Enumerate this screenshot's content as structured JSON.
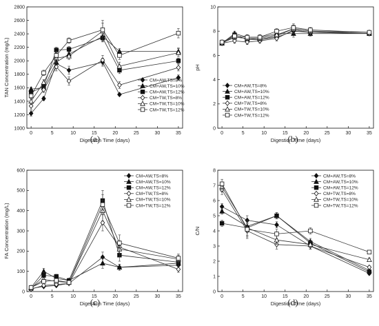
{
  "chart_data": [
    {
      "panel": "a",
      "type": "line",
      "panel_label": "(a)",
      "xlabel": "Digestion Time (days)",
      "ylabel": "TAN Concentration (mg/L)",
      "xlim": [
        -1,
        36
      ],
      "ylim": [
        1000,
        2800
      ],
      "xticks": [
        0,
        5,
        10,
        15,
        20,
        25,
        30,
        35
      ],
      "yticks": [
        1000,
        1200,
        1400,
        1600,
        1800,
        2000,
        2200,
        2400,
        2600,
        2800
      ],
      "x": [
        0,
        3,
        6,
        9,
        17,
        21,
        35
      ],
      "legend_position": "right",
      "series": [
        {
          "name": "CM+AW,TS=8%",
          "marker": "diamond",
          "fill": true,
          "values": [
            1220,
            1440,
            1960,
            1860,
            1980,
            1500,
            1750
          ],
          "err": [
            40,
            30,
            50,
            60,
            60,
            20,
            40
          ]
        },
        {
          "name": "CM+AW,TS=10%",
          "marker": "triangle",
          "fill": true,
          "values": [
            1580,
            1600,
            1980,
            2100,
            2360,
            2140,
            2140
          ],
          "err": [
            30,
            40,
            50,
            40,
            60,
            40,
            50
          ]
        },
        {
          "name": "CM+AW,TS=12%",
          "marker": "square",
          "fill": true,
          "values": [
            1530,
            1620,
            2160,
            2170,
            2340,
            1860,
            2000
          ],
          "err": [
            30,
            30,
            40,
            40,
            50,
            50,
            40
          ]
        },
        {
          "name": "CM+TW,TS=8%",
          "marker": "diamond",
          "fill": false,
          "values": [
            1330,
            1570,
            1910,
            1700,
            2010,
            1640,
            1900
          ],
          "err": [
            50,
            40,
            60,
            60,
            70,
            50,
            50
          ]
        },
        {
          "name": "CM+TW,TS=10%",
          "marker": "triangle",
          "fill": false,
          "values": [
            1400,
            1680,
            2040,
            2070,
            2440,
            1920,
            2120
          ],
          "err": [
            50,
            40,
            60,
            50,
            160,
            60,
            60
          ]
        },
        {
          "name": "CM+TW,TS=12%",
          "marker": "square",
          "fill": false,
          "values": [
            1480,
            1820,
            2080,
            2300,
            2460,
            2080,
            2410
          ],
          "err": [
            40,
            40,
            60,
            40,
            100,
            60,
            70
          ]
        }
      ]
    },
    {
      "panel": "b",
      "type": "line",
      "panel_label": "(b)",
      "xlabel": "Digestion Time (days)",
      "ylabel": "pH",
      "xlim": [
        -1,
        36
      ],
      "ylim": [
        0,
        10
      ],
      "xticks": [
        0,
        5,
        10,
        15,
        20,
        25,
        30,
        35
      ],
      "yticks": [
        0,
        2,
        4,
        6,
        8,
        10
      ],
      "x": [
        0,
        3,
        6,
        9,
        13,
        17,
        21,
        35
      ],
      "legend_position": "lower-left",
      "series": [
        {
          "name": "CM+AW,TS=8%",
          "marker": "diamond",
          "fill": true,
          "values": [
            7.0,
            7.5,
            7.4,
            7.3,
            7.5,
            8.0,
            7.9,
            7.8
          ],
          "err": [
            0.1,
            0.2,
            0.2,
            0.2,
            0.2,
            0.3,
            0.2,
            0.1
          ]
        },
        {
          "name": "CM+AW,TS=10%",
          "marker": "triangle",
          "fill": true,
          "values": [
            7.0,
            7.8,
            7.5,
            7.5,
            7.8,
            7.8,
            7.8,
            7.8
          ],
          "err": [
            0.1,
            0.2,
            0.2,
            0.2,
            0.2,
            0.3,
            0.2,
            0.1
          ]
        },
        {
          "name": "CM+AW,TS=12%",
          "marker": "square",
          "fill": true,
          "values": [
            7.0,
            7.7,
            7.3,
            7.3,
            7.6,
            8.2,
            8.0,
            7.8
          ],
          "err": [
            0.1,
            0.2,
            0.2,
            0.2,
            0.2,
            0.3,
            0.2,
            0.1
          ]
        },
        {
          "name": "CM+TW,TS=8%",
          "marker": "diamond",
          "fill": false,
          "values": [
            7.0,
            7.2,
            7.1,
            7.2,
            7.4,
            8.1,
            7.9,
            7.8
          ],
          "err": [
            0.1,
            0.2,
            0.2,
            0.2,
            0.2,
            0.3,
            0.2,
            0.1
          ]
        },
        {
          "name": "CM+TW,TS=10%",
          "marker": "triangle",
          "fill": false,
          "values": [
            7.1,
            7.5,
            7.4,
            7.4,
            7.7,
            8.2,
            8.0,
            7.9
          ],
          "err": [
            0.1,
            0.2,
            0.2,
            0.2,
            0.2,
            0.3,
            0.2,
            0.1
          ]
        },
        {
          "name": "CM+TW,TS=12%",
          "marker": "square",
          "fill": false,
          "values": [
            7.1,
            7.6,
            7.5,
            7.5,
            8.0,
            8.3,
            8.1,
            7.9
          ],
          "err": [
            0.1,
            0.2,
            0.2,
            0.2,
            0.2,
            0.3,
            0.2,
            0.1
          ]
        }
      ]
    },
    {
      "panel": "c",
      "type": "line",
      "panel_label": "(c)",
      "xlabel": "Digestion Time (days)",
      "ylabel": "FA Concentration (mg/L)",
      "xlim": [
        -1,
        36
      ],
      "ylim": [
        0,
        600
      ],
      "xticks": [
        0,
        5,
        10,
        15,
        20,
        25,
        30,
        35
      ],
      "yticks": [
        0,
        100,
        200,
        300,
        400,
        500,
        600
      ],
      "x": [
        0,
        3,
        6,
        9,
        17,
        21,
        35
      ],
      "legend_position": "top-right",
      "series": [
        {
          "name": "CM+AW,TS=8%",
          "marker": "diamond",
          "fill": true,
          "values": [
            15,
            25,
            30,
            40,
            170,
            120,
            130
          ],
          "err": [
            3,
            5,
            5,
            5,
            25,
            15,
            15
          ]
        },
        {
          "name": "CM+AW,TS=10%",
          "marker": "triangle",
          "fill": true,
          "values": [
            20,
            100,
            65,
            55,
            140,
            120,
            140
          ],
          "err": [
            3,
            15,
            10,
            10,
            25,
            15,
            15
          ]
        },
        {
          "name": "CM+AW,TS=12%",
          "marker": "square",
          "fill": true,
          "values": [
            15,
            80,
            75,
            55,
            450,
            180,
            145
          ],
          "err": [
            3,
            15,
            10,
            10,
            50,
            30,
            20
          ]
        },
        {
          "name": "CM+TW,TS=8%",
          "marker": "diamond",
          "fill": false,
          "values": [
            12,
            30,
            35,
            40,
            340,
            220,
            110
          ],
          "err": [
            3,
            5,
            5,
            5,
            40,
            30,
            15
          ]
        },
        {
          "name": "CM+TW,TS=10%",
          "marker": "triangle",
          "fill": false,
          "values": [
            18,
            60,
            50,
            45,
            400,
            210,
            160
          ],
          "err": [
            3,
            10,
            8,
            8,
            50,
            40,
            20
          ]
        },
        {
          "name": "CM+TW,TS=12%",
          "marker": "square",
          "fill": false,
          "values": [
            20,
            50,
            55,
            45,
            430,
            240,
            165
          ],
          "err": [
            3,
            10,
            8,
            8,
            50,
            40,
            20
          ]
        }
      ]
    },
    {
      "panel": "d",
      "type": "line",
      "panel_label": "(d)",
      "xlabel": "Digestion Time (days)",
      "ylabel": "C/N",
      "xlim": [
        -1,
        36
      ],
      "ylim": [
        0,
        8
      ],
      "xticks": [
        0,
        5,
        10,
        15,
        20,
        25,
        30,
        35
      ],
      "yticks": [
        0,
        1,
        2,
        3,
        4,
        5,
        6,
        7,
        8
      ],
      "x": [
        0,
        6,
        13,
        21,
        35
      ],
      "legend_position": "top-right",
      "series": [
        {
          "name": "CM+AW,TS=8%",
          "marker": "diamond",
          "fill": true,
          "values": [
            5.6,
            4.7,
            4.4,
            3.0,
            1.2
          ],
          "err": [
            0.2,
            0.3,
            0.2,
            0.2,
            0.1
          ]
        },
        {
          "name": "CM+AW,TS=10%",
          "marker": "triangle",
          "fill": true,
          "values": [
            5.3,
            4.3,
            5.0,
            3.3,
            1.4
          ],
          "err": [
            0.2,
            0.3,
            0.2,
            0.2,
            0.1
          ]
        },
        {
          "name": "CM+AW,TS=12%",
          "marker": "square",
          "fill": true,
          "values": [
            4.5,
            4.2,
            5.0,
            3.2,
            1.3
          ],
          "err": [
            0.2,
            0.3,
            0.2,
            0.2,
            0.1
          ]
        },
        {
          "name": "CM+TW,TS=8%",
          "marker": "diamond",
          "fill": false,
          "values": [
            6.7,
            4.0,
            3.1,
            3.0,
            1.6
          ],
          "err": [
            0.3,
            0.5,
            0.3,
            0.2,
            0.1
          ]
        },
        {
          "name": "CM+TW,TS=10%",
          "marker": "triangle",
          "fill": false,
          "values": [
            6.9,
            4.2,
            3.4,
            3.1,
            2.1
          ],
          "err": [
            0.3,
            0.5,
            0.3,
            0.2,
            0.1
          ]
        },
        {
          "name": "CM+TW,TS=12%",
          "marker": "square",
          "fill": false,
          "values": [
            7.1,
            4.1,
            3.8,
            4.0,
            2.6
          ],
          "err": [
            0.3,
            0.5,
            0.3,
            0.2,
            0.1
          ]
        }
      ]
    }
  ]
}
